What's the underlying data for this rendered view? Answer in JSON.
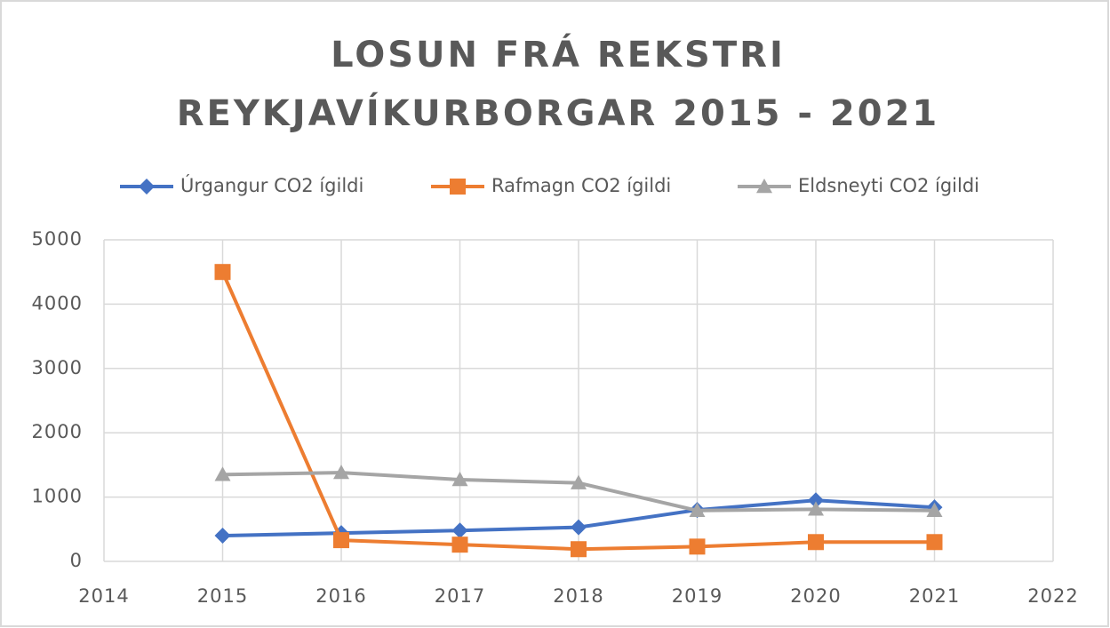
{
  "chart_data": {
    "type": "line",
    "title": [
      "LOSUN FRÁ REKSTRI",
      "REYKJAVÍKURBORGAR 2015 - 2021"
    ],
    "x": [
      2015,
      2016,
      2017,
      2018,
      2019,
      2020,
      2021
    ],
    "series": [
      {
        "name": "Úrgangur CO2 ígildi",
        "color": "#4472c4",
        "marker": "diamond",
        "values": [
          400,
          440,
          480,
          530,
          800,
          950,
          840
        ]
      },
      {
        "name": "Rafmagn CO2 ígildi",
        "color": "#ed7d31",
        "marker": "square",
        "values": [
          4500,
          330,
          260,
          190,
          230,
          300,
          300
        ]
      },
      {
        "name": "Eldsneyti CO2 ígildi",
        "color": "#a5a5a5",
        "marker": "triangle",
        "values": [
          1350,
          1380,
          1270,
          1220,
          790,
          810,
          790
        ]
      }
    ],
    "xlim": [
      2014,
      2022
    ],
    "xticks": [
      2014,
      2015,
      2016,
      2017,
      2018,
      2019,
      2020,
      2021,
      2022
    ],
    "ylim": [
      0,
      5000
    ],
    "yticks": [
      0,
      1000,
      2000,
      3000,
      4000,
      5000
    ],
    "grid": true,
    "legend": "top"
  }
}
